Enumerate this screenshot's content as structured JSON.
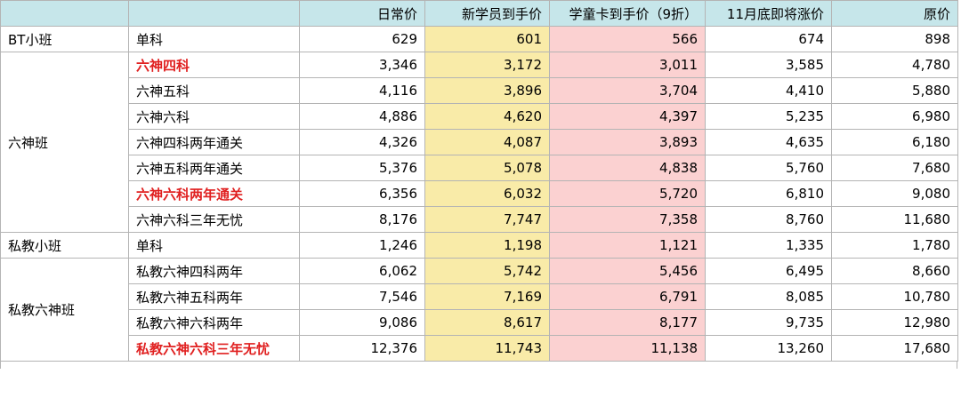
{
  "headers": [
    "",
    "",
    "日常价",
    "新学员到手价",
    "学童卡到手价（9折）",
    "11月底即将涨价",
    "原价"
  ],
  "groups": [
    {
      "name": "BT小班",
      "rows": [
        {
          "course": "单科",
          "daily": "629",
          "new_student": "601",
          "card": "566",
          "pre_increase": "674",
          "original": "898",
          "highlight": false
        }
      ]
    },
    {
      "name": "六神班",
      "rows": [
        {
          "course": "六神四科",
          "daily": "3,346",
          "new_student": "3,172",
          "card": "3,011",
          "pre_increase": "3,585",
          "original": "4,780",
          "highlight": true
        },
        {
          "course": "六神五科",
          "daily": "4,116",
          "new_student": "3,896",
          "card": "3,704",
          "pre_increase": "4,410",
          "original": "5,880",
          "highlight": false
        },
        {
          "course": "六神六科",
          "daily": "4,886",
          "new_student": "4,620",
          "card": "4,397",
          "pre_increase": "5,235",
          "original": "6,980",
          "highlight": false
        },
        {
          "course": "六神四科两年通关",
          "daily": "4,326",
          "new_student": "4,087",
          "card": "3,893",
          "pre_increase": "4,635",
          "original": "6,180",
          "highlight": false
        },
        {
          "course": "六神五科两年通关",
          "daily": "5,376",
          "new_student": "5,078",
          "card": "4,838",
          "pre_increase": "5,760",
          "original": "7,680",
          "highlight": false
        },
        {
          "course": "六神六科两年通关",
          "daily": "6,356",
          "new_student": "6,032",
          "card": "5,720",
          "pre_increase": "6,810",
          "original": "9,080",
          "highlight": true
        },
        {
          "course": "六神六科三年无忧",
          "daily": "8,176",
          "new_student": "7,747",
          "card": "7,358",
          "pre_increase": "8,760",
          "original": "11,680",
          "highlight": false
        }
      ]
    },
    {
      "name": "私教小班",
      "rows": [
        {
          "course": "单科",
          "daily": "1,246",
          "new_student": "1,198",
          "card": "1,121",
          "pre_increase": "1,335",
          "original": "1,780",
          "highlight": false
        }
      ]
    },
    {
      "name": "私教六神班",
      "rows": [
        {
          "course": "私教六神四科两年",
          "daily": "6,062",
          "new_student": "5,742",
          "card": "5,456",
          "pre_increase": "6,495",
          "original": "8,660",
          "highlight": false
        },
        {
          "course": "私教六神五科两年",
          "daily": "7,546",
          "new_student": "7,169",
          "card": "6,791",
          "pre_increase": "8,085",
          "original": "10,780",
          "highlight": false
        },
        {
          "course": "私教六神六科两年",
          "daily": "9,086",
          "new_student": "8,617",
          "card": "8,177",
          "pre_increase": "9,735",
          "original": "12,980",
          "highlight": false
        },
        {
          "course": "私教六神六科三年无忧",
          "daily": "12,376",
          "new_student": "11,743",
          "card": "11,138",
          "pre_increase": "13,260",
          "original": "17,680",
          "highlight": true
        }
      ]
    }
  ],
  "colors": {
    "header_bg": "#c6e6ea",
    "new_student_bg": "#f9eba8",
    "card_bg": "#fbd1d1",
    "highlight_text": "#e02020",
    "grid_border": "#b4b4b4"
  }
}
